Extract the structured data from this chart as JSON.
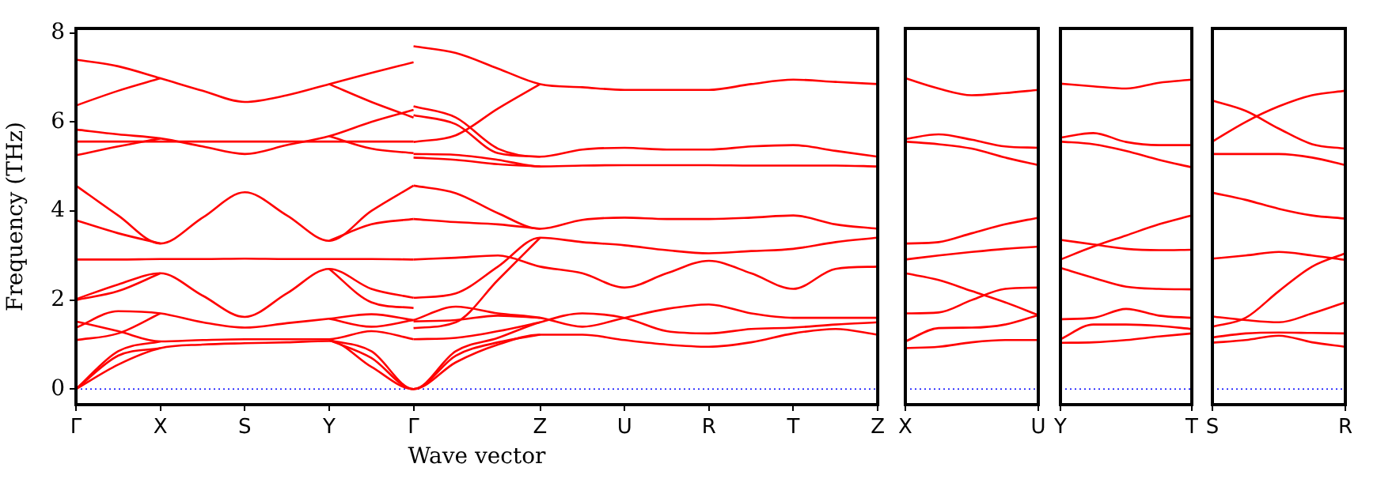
{
  "chart_data": [
    {
      "type": "line",
      "xlabel": "Wave vector",
      "ylabel": "Frequency (THz)",
      "categories": [
        "Γ",
        null,
        "X",
        null,
        "S",
        null,
        "Y",
        null,
        "Γ",
        null,
        null,
        "Z",
        null,
        "U",
        null,
        "R",
        null,
        "T",
        null,
        "Z"
      ],
      "ylim": [
        -0.35,
        8.1
      ],
      "yticks": [
        0,
        2,
        4,
        6,
        8
      ],
      "ref_lines": [
        {
          "axis": "y",
          "value": 0,
          "color": "#0000ff",
          "line_style": "dotted"
        }
      ],
      "series": [
        {
          "color": "#ff0000",
          "values": [
            7.4,
            7.25,
            6.98,
            6.7,
            6.45,
            6.6,
            6.85,
            7.1,
            7.34,
            null,
            null,
            null,
            null,
            null,
            null,
            null,
            null,
            null,
            null,
            null
          ]
        },
        {
          "color": "#ff0000",
          "values": [
            6.37,
            6.7,
            6.98,
            null,
            null,
            null,
            null,
            null,
            null,
            null,
            null,
            null,
            null,
            null,
            null,
            null,
            null,
            null,
            null,
            null
          ]
        },
        {
          "color": "#ff0000",
          "values": [
            null,
            null,
            null,
            null,
            null,
            null,
            6.85,
            6.45,
            6.1,
            null,
            null,
            null,
            null,
            null,
            null,
            null,
            null,
            null,
            null,
            null
          ]
        },
        {
          "color": "#ff0000",
          "values": [
            5.56,
            5.56,
            5.56,
            5.56,
            5.56,
            5.56,
            5.56,
            5.56,
            5.56,
            null,
            null,
            null,
            null,
            null,
            null,
            null,
            null,
            null,
            null,
            null
          ]
        },
        {
          "color": "#ff0000",
          "values": [
            5.83,
            5.72,
            5.63,
            5.45,
            5.28,
            5.48,
            5.68,
            6.0,
            6.27,
            null,
            null,
            null,
            null,
            null,
            null,
            null,
            null,
            null,
            null,
            null
          ]
        },
        {
          "color": "#ff0000",
          "values": [
            5.25,
            5.45,
            5.63,
            null,
            null,
            null,
            null,
            null,
            null,
            null,
            null,
            null,
            null,
            null,
            null,
            null,
            null,
            null,
            null,
            null
          ]
        },
        {
          "color": "#ff0000",
          "values": [
            null,
            null,
            null,
            null,
            null,
            null,
            5.68,
            5.4,
            5.3,
            null,
            null,
            null,
            null,
            null,
            null,
            null,
            null,
            null,
            null,
            null
          ]
        },
        {
          "color": "#ff0000",
          "values": [
            4.57,
            3.9,
            3.27,
            3.85,
            4.42,
            3.9,
            3.33,
            4.0,
            4.57,
            null,
            null,
            null,
            null,
            null,
            null,
            null,
            null,
            null,
            null,
            null
          ]
        },
        {
          "color": "#ff0000",
          "values": [
            3.79,
            3.5,
            3.27,
            null,
            null,
            null,
            null,
            null,
            null,
            null,
            null,
            null,
            null,
            null,
            null,
            null,
            null,
            null,
            null,
            null
          ]
        },
        {
          "color": "#ff0000",
          "values": [
            null,
            null,
            null,
            null,
            null,
            null,
            3.33,
            3.7,
            3.82,
            null,
            null,
            null,
            null,
            null,
            null,
            null,
            null,
            null,
            null,
            null
          ]
        },
        {
          "color": "#ff0000",
          "values": [
            2.91,
            2.91,
            2.92,
            2.92,
            2.93,
            2.92,
            2.92,
            2.92,
            2.91,
            null,
            null,
            null,
            null,
            null,
            null,
            null,
            null,
            null,
            null,
            null
          ]
        },
        {
          "color": "#ff0000",
          "values": [
            2.02,
            2.35,
            2.6,
            2.1,
            1.62,
            2.15,
            2.7,
            2.25,
            2.05,
            null,
            null,
            null,
            null,
            null,
            null,
            null,
            null,
            null,
            null,
            null
          ]
        },
        {
          "color": "#ff0000",
          "values": [
            2.0,
            2.2,
            2.6,
            null,
            null,
            null,
            null,
            null,
            null,
            null,
            null,
            null,
            null,
            null,
            null,
            null,
            null,
            null,
            null,
            null
          ]
        },
        {
          "color": "#ff0000",
          "values": [
            null,
            null,
            null,
            null,
            null,
            null,
            2.7,
            1.95,
            1.82,
            null,
            null,
            null,
            null,
            null,
            null,
            null,
            null,
            null,
            null,
            null
          ]
        },
        {
          "color": "#ff0000",
          "values": [
            1.38,
            1.75,
            1.7,
            1.5,
            1.38,
            1.48,
            1.58,
            1.68,
            1.55,
            null,
            null,
            null,
            null,
            null,
            null,
            null,
            null,
            null,
            null,
            null
          ]
        },
        {
          "color": "#ff0000",
          "values": [
            1.1,
            1.25,
            1.7,
            null,
            null,
            null,
            null,
            null,
            null,
            null,
            null,
            null,
            null,
            null,
            null,
            null,
            null,
            null,
            null,
            null
          ]
        },
        {
          "color": "#ff0000",
          "values": [
            null,
            null,
            null,
            null,
            null,
            null,
            1.58,
            1.4,
            1.55,
            null,
            null,
            null,
            null,
            null,
            null,
            null,
            null,
            null,
            null,
            null
          ]
        },
        {
          "color": "#ff0000",
          "values": [
            1.52,
            1.3,
            1.07,
            1.1,
            1.12,
            1.12,
            1.12,
            1.3,
            1.12,
            null,
            null,
            null,
            null,
            null,
            null,
            null,
            null,
            null,
            null,
            null
          ]
        },
        {
          "color": "#ff0000",
          "values": [
            0,
            0.55,
            0.92,
            1.0,
            1.03,
            1.05,
            1.08,
            0.5,
            0,
            0.6,
            1.0,
            1.22,
            1.22,
            1.1,
            1.0,
            0.95,
            1.05,
            1.25,
            1.35,
            1.22
          ]
        },
        {
          "color": "#ff0000",
          "values": [
            0,
            0.75,
            0.92,
            null,
            null,
            null,
            null,
            null,
            null,
            null,
            null,
            null,
            null,
            null,
            null,
            null,
            null,
            null,
            null,
            null
          ]
        },
        {
          "color": "#ff0000",
          "values": [
            0,
            0.85,
            1.07,
            null,
            null,
            null,
            null,
            null,
            null,
            null,
            null,
            null,
            null,
            null,
            null,
            null,
            null,
            null,
            null,
            null
          ]
        },
        {
          "color": "#ff0000",
          "values": [
            null,
            null,
            null,
            null,
            null,
            null,
            1.1,
            0.7,
            0,
            0.75,
            1.05,
            1.22,
            null,
            null,
            null,
            null,
            null,
            null,
            null,
            null
          ]
        },
        {
          "color": "#ff0000",
          "values": [
            null,
            null,
            null,
            null,
            null,
            null,
            1.1,
            0.85,
            0,
            0.85,
            1.15,
            1.5,
            1.7,
            1.6,
            1.3,
            1.25,
            1.35,
            1.38,
            1.45,
            1.5
          ]
        },
        {
          "color": "#ff0000",
          "values": [
            null,
            null,
            null,
            null,
            null,
            null,
            null,
            null,
            1.12,
            1.15,
            1.3,
            1.5,
            null,
            null,
            null,
            null,
            null,
            null,
            null,
            null
          ]
        },
        {
          "color": "#ff0000",
          "values": [
            null,
            null,
            null,
            null,
            null,
            null,
            null,
            null,
            1.55,
            1.85,
            1.7,
            1.6,
            1.4,
            1.6,
            1.8,
            1.9,
            1.7,
            1.6,
            1.6,
            1.6
          ]
        },
        {
          "color": "#ff0000",
          "values": [
            null,
            null,
            null,
            null,
            null,
            null,
            null,
            null,
            1.52,
            1.55,
            1.65,
            1.6,
            null,
            null,
            null,
            null,
            null,
            null,
            null,
            null
          ]
        },
        {
          "color": "#ff0000",
          "values": [
            null,
            null,
            null,
            null,
            null,
            null,
            null,
            null,
            1.37,
            1.5,
            2.45,
            3.4,
            null,
            null,
            null,
            null,
            null,
            null,
            null,
            null
          ]
        },
        {
          "color": "#ff0000",
          "values": [
            null,
            null,
            null,
            null,
            null,
            null,
            null,
            null,
            2.05,
            2.15,
            2.75,
            3.4,
            3.3,
            3.23,
            3.12,
            3.05,
            3.1,
            3.15,
            3.3,
            3.4
          ]
        },
        {
          "color": "#ff0000",
          "values": [
            null,
            null,
            null,
            null,
            null,
            null,
            null,
            null,
            2.91,
            2.95,
            3.0,
            2.75,
            2.6,
            2.28,
            2.6,
            2.88,
            2.6,
            2.25,
            2.7,
            2.75
          ]
        },
        {
          "color": "#ff0000",
          "values": [
            null,
            null,
            null,
            null,
            null,
            null,
            null,
            null,
            3.82,
            3.75,
            3.7,
            3.6,
            null,
            null,
            null,
            null,
            null,
            null,
            null,
            null
          ]
        },
        {
          "color": "#ff0000",
          "values": [
            null,
            null,
            null,
            null,
            null,
            null,
            null,
            null,
            4.57,
            4.4,
            3.95,
            3.6,
            3.8,
            3.85,
            3.82,
            3.82,
            3.85,
            3.9,
            3.7,
            3.6
          ]
        },
        {
          "color": "#ff0000",
          "values": [
            null,
            null,
            null,
            null,
            null,
            null,
            null,
            null,
            5.2,
            5.15,
            5.05,
            5.0,
            null,
            null,
            null,
            null,
            null,
            null,
            null,
            null
          ]
        },
        {
          "color": "#ff0000",
          "values": [
            null,
            null,
            null,
            null,
            null,
            null,
            null,
            null,
            5.28,
            5.26,
            5.15,
            5.0,
            5.02,
            5.03,
            5.03,
            5.03,
            5.02,
            5.02,
            5.02,
            5.0
          ]
        },
        {
          "color": "#ff0000",
          "values": [
            null,
            null,
            null,
            null,
            null,
            null,
            null,
            null,
            6.15,
            5.95,
            5.3,
            5.22,
            null,
            null,
            null,
            null,
            null,
            null,
            null,
            null
          ]
        },
        {
          "color": "#ff0000",
          "values": [
            null,
            null,
            null,
            null,
            null,
            null,
            null,
            null,
            6.35,
            6.1,
            5.4,
            5.22,
            5.38,
            5.42,
            5.38,
            5.38,
            5.45,
            5.48,
            5.35,
            5.22
          ]
        },
        {
          "color": "#ff0000",
          "values": [
            null,
            null,
            null,
            null,
            null,
            null,
            null,
            null,
            5.55,
            5.7,
            6.3,
            6.85,
            null,
            null,
            null,
            null,
            null,
            null,
            null,
            null
          ]
        },
        {
          "color": "#ff0000",
          "values": [
            null,
            null,
            null,
            null,
            null,
            null,
            null,
            null,
            7.7,
            7.55,
            7.2,
            6.85,
            6.78,
            6.72,
            6.72,
            6.72,
            6.85,
            6.95,
            6.9,
            6.85
          ]
        }
      ]
    },
    {
      "type": "line",
      "categories": [
        "X",
        null,
        null,
        null,
        "U"
      ],
      "ylim": [
        -0.35,
        8.1
      ],
      "yticks": [
        0,
        2,
        4,
        6,
        8
      ],
      "tick_labels": "x",
      "ref_lines": [
        {
          "axis": "y",
          "value": 0,
          "color": "#0000ff",
          "line_style": "dotted"
        }
      ],
      "series": [
        {
          "color": "#ff0000",
          "values": [
            0.92,
            0.95,
            1.05,
            1.1,
            1.1
          ]
        },
        {
          "color": "#ff0000",
          "values": [
            1.07,
            1.37,
            1.38,
            1.45,
            1.66
          ]
        },
        {
          "color": "#ff0000",
          "values": [
            1.7,
            1.72,
            2.0,
            2.25,
            2.28
          ]
        },
        {
          "color": "#ff0000",
          "values": [
            2.6,
            2.45,
            2.2,
            1.95,
            1.66
          ]
        },
        {
          "color": "#ff0000",
          "values": [
            2.91,
            3.0,
            3.08,
            3.15,
            3.2
          ]
        },
        {
          "color": "#ff0000",
          "values": [
            3.27,
            3.3,
            3.5,
            3.7,
            3.85
          ]
        },
        {
          "color": "#ff0000",
          "values": [
            5.56,
            5.5,
            5.4,
            5.2,
            5.03
          ]
        },
        {
          "color": "#ff0000",
          "values": [
            5.62,
            5.72,
            5.6,
            5.45,
            5.42
          ]
        },
        {
          "color": "#ff0000",
          "values": [
            6.98,
            6.75,
            6.6,
            6.65,
            6.72
          ]
        }
      ]
    },
    {
      "type": "line",
      "categories": [
        "Y",
        null,
        null,
        null,
        "T"
      ],
      "ylim": [
        -0.35,
        8.1
      ],
      "yticks": [
        0,
        2,
        4,
        6,
        8
      ],
      "tick_labels": "x",
      "ref_lines": [
        {
          "axis": "y",
          "value": 0,
          "color": "#0000ff",
          "line_style": "dotted"
        }
      ],
      "series": [
        {
          "color": "#ff0000",
          "values": [
            1.04,
            1.05,
            1.1,
            1.18,
            1.25
          ]
        },
        {
          "color": "#ff0000",
          "values": [
            1.12,
            1.45,
            1.45,
            1.42,
            1.35
          ]
        },
        {
          "color": "#ff0000",
          "values": [
            1.57,
            1.6,
            1.8,
            1.65,
            1.6
          ]
        },
        {
          "color": "#ff0000",
          "values": [
            2.72,
            2.5,
            2.3,
            2.25,
            2.24
          ]
        },
        {
          "color": "#ff0000",
          "values": [
            2.91,
            3.2,
            3.45,
            3.7,
            3.9
          ]
        },
        {
          "color": "#ff0000",
          "values": [
            3.35,
            3.25,
            3.15,
            3.12,
            3.13
          ]
        },
        {
          "color": "#ff0000",
          "values": [
            5.56,
            5.5,
            5.35,
            5.15,
            4.98
          ]
        },
        {
          "color": "#ff0000",
          "values": [
            5.65,
            5.75,
            5.55,
            5.48,
            5.48
          ]
        },
        {
          "color": "#ff0000",
          "values": [
            6.86,
            6.8,
            6.75,
            6.88,
            6.95
          ]
        }
      ]
    },
    {
      "type": "line",
      "categories": [
        "S",
        null,
        null,
        null,
        "R"
      ],
      "ylim": [
        -0.35,
        8.1
      ],
      "yticks": [
        0,
        2,
        4,
        6,
        8
      ],
      "tick_labels": "x",
      "ref_lines": [
        {
          "axis": "y",
          "value": 0,
          "color": "#0000ff",
          "line_style": "dotted"
        }
      ],
      "series": [
        {
          "color": "#ff0000",
          "values": [
            1.04,
            1.1,
            1.2,
            1.05,
            0.95
          ]
        },
        {
          "color": "#ff0000",
          "values": [
            1.16,
            1.25,
            1.27,
            1.26,
            1.25
          ]
        },
        {
          "color": "#ff0000",
          "values": [
            1.4,
            1.6,
            2.2,
            2.75,
            3.05
          ]
        },
        {
          "color": "#ff0000",
          "values": [
            1.63,
            1.55,
            1.5,
            1.7,
            1.95
          ]
        },
        {
          "color": "#ff0000",
          "values": [
            2.93,
            3.0,
            3.08,
            3.0,
            2.9
          ]
        },
        {
          "color": "#ff0000",
          "values": [
            4.41,
            4.25,
            4.05,
            3.9,
            3.83
          ]
        },
        {
          "color": "#ff0000",
          "values": [
            5.28,
            5.28,
            5.28,
            5.2,
            5.03
          ]
        },
        {
          "color": "#ff0000",
          "values": [
            5.56,
            6.0,
            6.35,
            6.6,
            6.7
          ]
        },
        {
          "color": "#ff0000",
          "values": [
            6.48,
            6.25,
            5.85,
            5.5,
            5.4
          ]
        }
      ]
    }
  ]
}
